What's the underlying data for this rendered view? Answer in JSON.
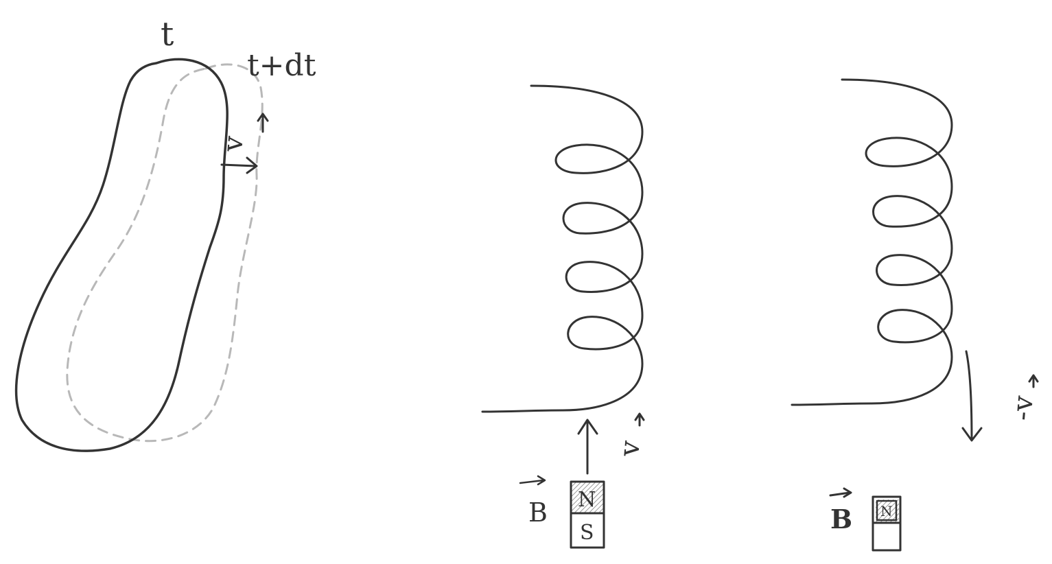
{
  "colors": {
    "ink": "#333333",
    "ghost": "#b8b8b8",
    "shade": "#bdbdbd",
    "background": "#ffffff"
  },
  "loop_panel": {
    "time_label": "t",
    "later_time_label": "t+dt",
    "velocity_label": "v"
  },
  "coil_panel_1": {
    "velocity_label": "v",
    "field_label": "B",
    "magnet_top": "N",
    "magnet_bottom": "S"
  },
  "coil_panel_2": {
    "velocity_label": "-v",
    "field_label": "B",
    "magnet_top": "N"
  }
}
